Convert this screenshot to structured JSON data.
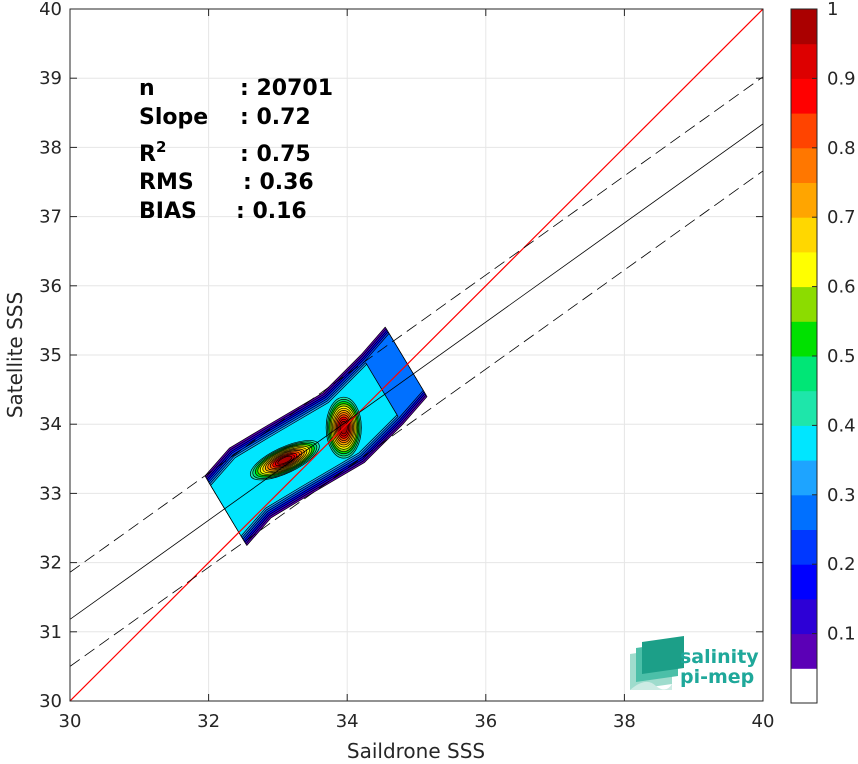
{
  "chart_data": {
    "type": "heatmap",
    "title": "",
    "xlabel": "Saildrone SSS",
    "ylabel": "Satellite SSS",
    "xlim": [
      30,
      40
    ],
    "ylim": [
      30,
      40
    ],
    "xticks": [
      30,
      32,
      34,
      36,
      38,
      40
    ],
    "yticks": [
      30,
      31,
      32,
      33,
      34,
      35,
      36,
      37,
      38,
      39,
      40
    ],
    "grid": true,
    "stats": [
      {
        "label": "n",
        "value": ": 20701"
      },
      {
        "label": "Slope",
        "value": ": 0.72"
      },
      {
        "label": "R",
        "sup": "2",
        "value": ": 0.75"
      },
      {
        "label": "RMS",
        "value": ": 0.36"
      },
      {
        "label": "BIAS",
        "value": ": 0.16"
      }
    ],
    "lines": {
      "identity": {
        "slope": 1,
        "intercept": 0,
        "color": "#ff0000"
      },
      "fit": {
        "slope": 0.716,
        "intercept": 9.7,
        "color": "#000000"
      },
      "fit_band_offset": 0.68
    },
    "density_peaks": [
      {
        "x": 33.1,
        "y": 33.48,
        "rx": 0.32,
        "ry": 0.11,
        "rot": -25
      },
      {
        "x": 33.95,
        "y": 33.95,
        "rx": 0.15,
        "ry": 0.26,
        "rot": 0
      }
    ],
    "colorbar": {
      "ticks": [
        "0.1",
        "0.2",
        "0.3",
        "0.4",
        "0.5",
        "0.6",
        "0.7",
        "0.8",
        "0.9",
        "1"
      ],
      "levels": [
        0.05,
        0.1,
        0.15,
        0.2,
        0.25,
        0.3,
        0.35,
        0.4,
        0.45,
        0.5,
        0.55,
        0.6,
        0.65,
        0.7,
        0.75,
        0.8,
        0.85,
        0.9,
        0.95
      ],
      "colors": [
        "#ffffff",
        "#5b00b6",
        "#2d00d6",
        "#0000ff",
        "#0038ff",
        "#0070ff",
        "#1ea4ff",
        "#00e6ff",
        "#1ee6aa",
        "#00e676",
        "#00e100",
        "#8cdc00",
        "#ffff00",
        "#ffd700",
        "#ffa500",
        "#ff7700",
        "#ff4400",
        "#ff0000",
        "#dd0000",
        "#aa0000"
      ]
    },
    "logo": {
      "line1": "salinity",
      "line2": "pi-mep"
    }
  }
}
